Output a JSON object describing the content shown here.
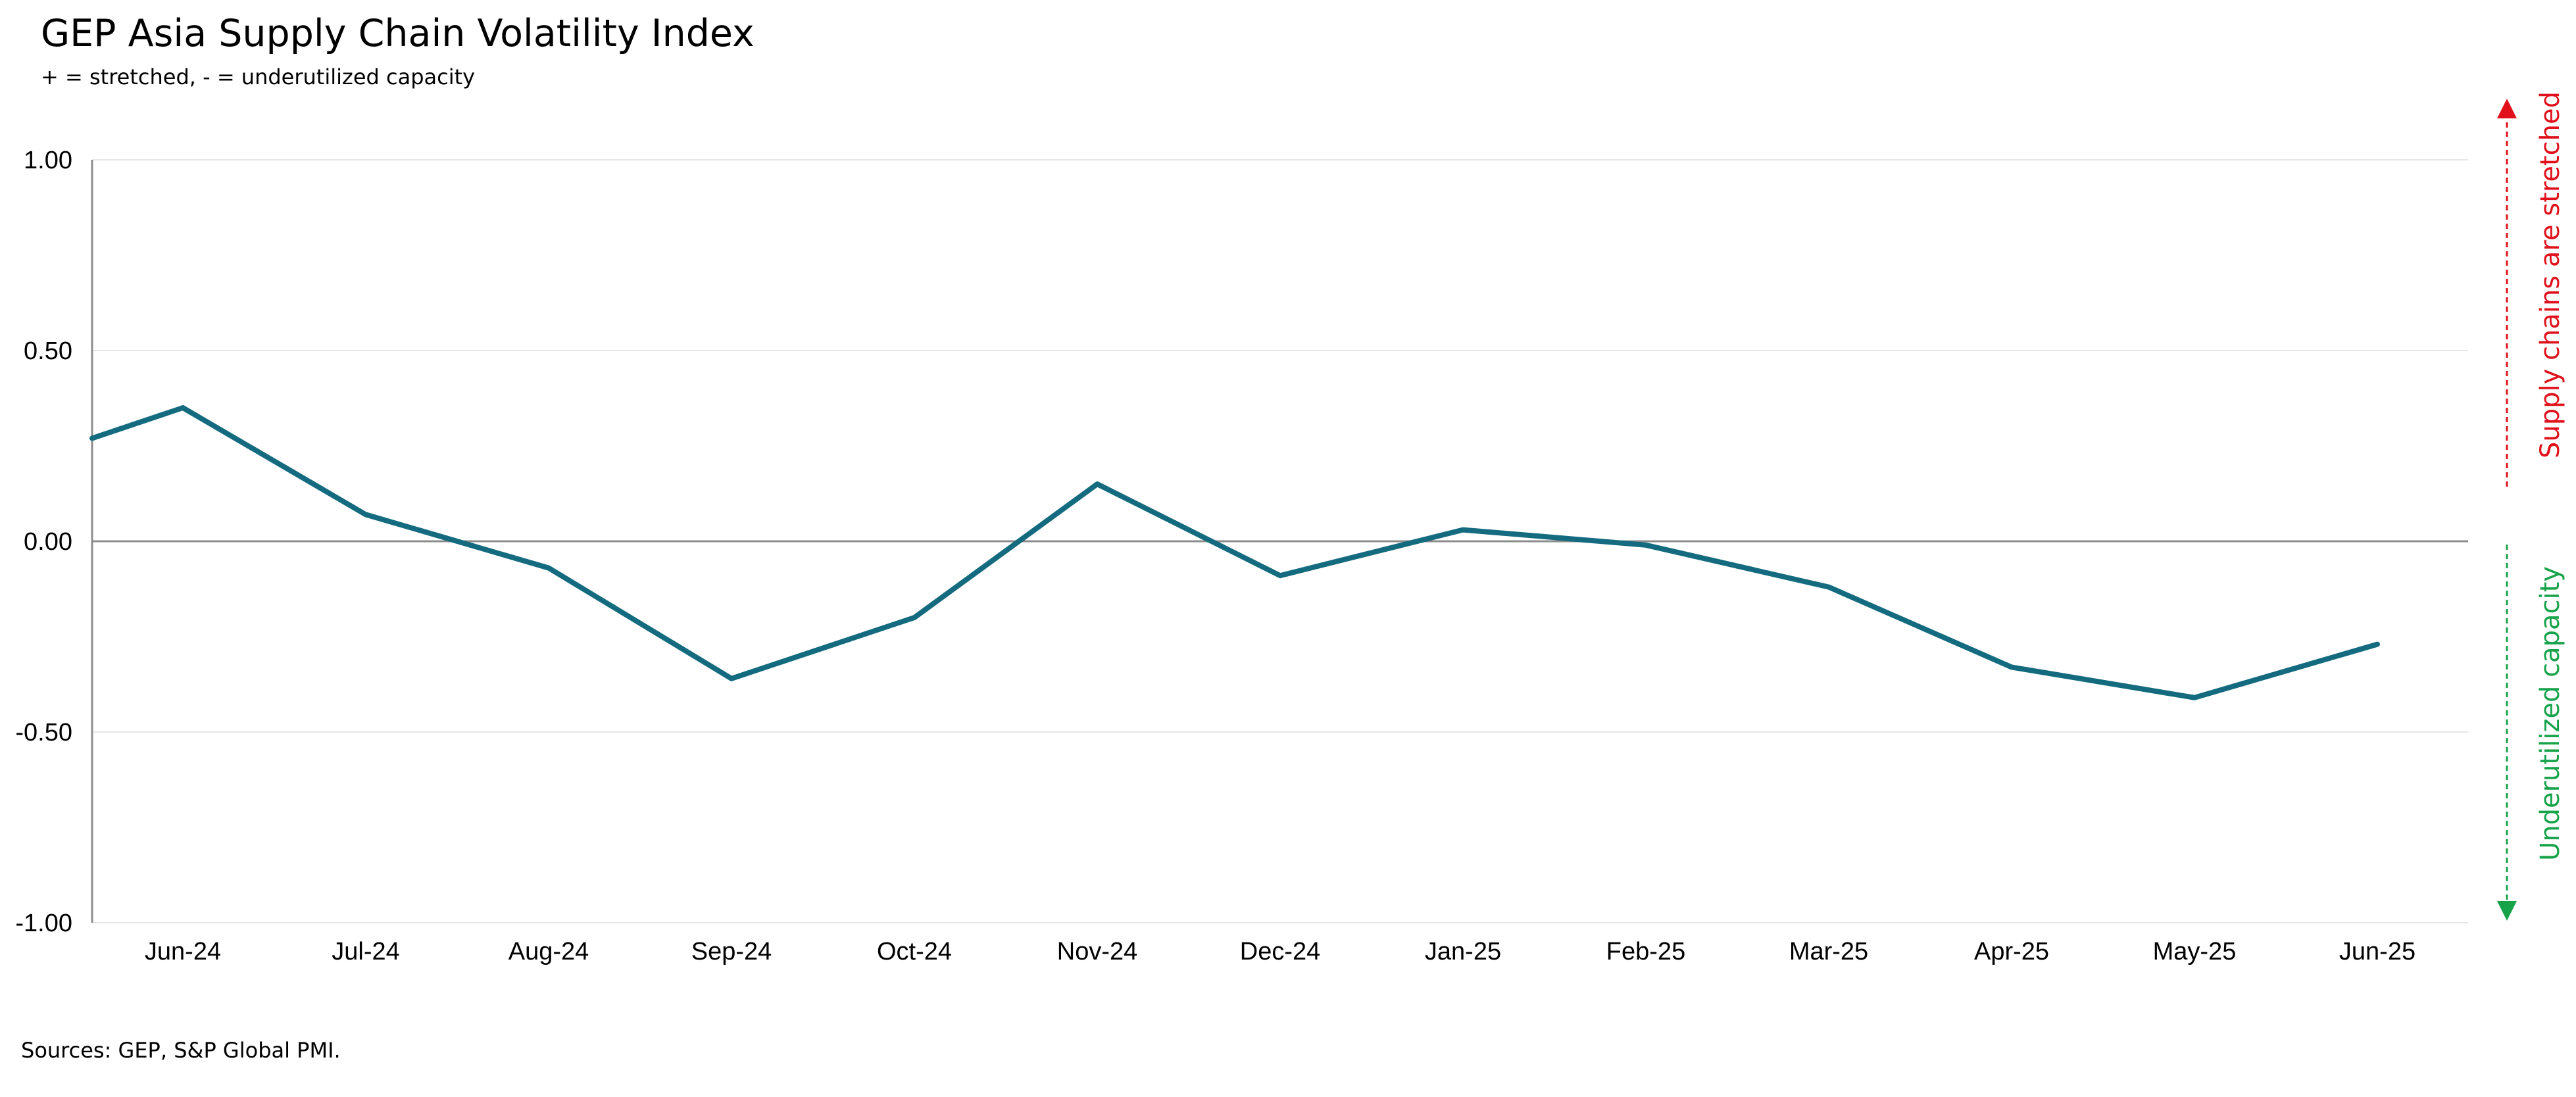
{
  "title": "GEP Asia Supply Chain Volatility Index",
  "subtitle": "+ = stretched, - = underutilized capacity",
  "source": "Sources: GEP, S&P Global PMI.",
  "colors": {
    "line": "#146b7f",
    "stretched": "#e0111b",
    "underutilized": "#16a34a",
    "axis": "#8c8c8c",
    "grid": "#e6e6e6"
  },
  "annotations": {
    "stretched": "Supply chains are stretched",
    "underutilized": "Underutilized capacity"
  },
  "chart_data": {
    "type": "line",
    "title": "GEP Asia Supply Chain Volatility Index",
    "subtitle": "+ = stretched, - = underutilized capacity",
    "categories": [
      "Jun-24",
      "Jul-24",
      "Aug-24",
      "Sep-24",
      "Oct-24",
      "Nov-24",
      "Dec-24",
      "Jan-25",
      "Feb-25",
      "Mar-25",
      "Apr-25",
      "May-25",
      "Jun-25"
    ],
    "series": [
      {
        "values": [
          0.35,
          0.07,
          -0.07,
          -0.36,
          -0.2,
          0.15,
          -0.09,
          0.03,
          -0.01,
          -0.12,
          -0.33,
          -0.41,
          -0.27
        ]
      }
    ],
    "line_enters_from_left_value": 0.27,
    "ylim": [
      -1.0,
      1.0
    ],
    "yticks": [
      "1.00",
      "0.50",
      "0.00",
      "-0.50",
      "-1.00"
    ],
    "ytick_values": [
      1.0,
      0.5,
      0.0,
      -0.5,
      -1.0
    ],
    "grid": true,
    "legend": "none"
  }
}
